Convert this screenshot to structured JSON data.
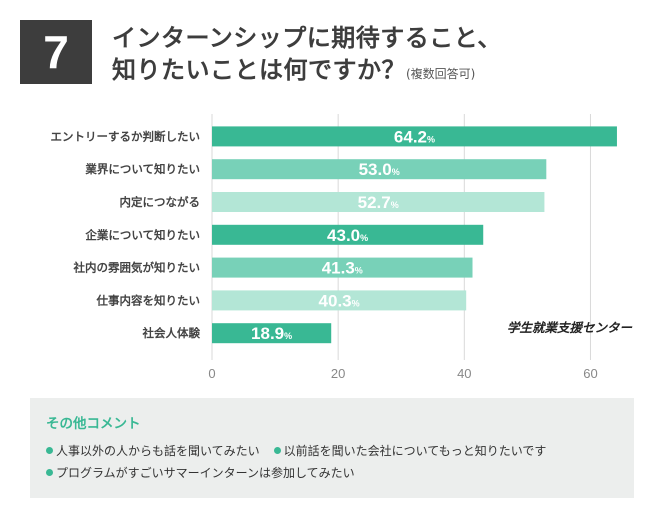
{
  "badge": "7",
  "title": {
    "line1": "インターンシップに期待すること、",
    "line2": "知りたいことは何ですか？",
    "note": "(複数回答可)"
  },
  "chart_data": {
    "type": "bar",
    "orientation": "horizontal",
    "categories": [
      "エントリーするか判断したい",
      "業界について知りたい",
      "内定につながる",
      "企業について知りたい",
      "社内の雰囲気が知りたい",
      "仕事内容を知りたい",
      "社会人体験"
    ],
    "values": [
      64.2,
      53.0,
      52.7,
      43.0,
      41.3,
      40.3,
      18.9
    ],
    "value_labels": [
      "64.2",
      "53.0",
      "52.7",
      "43.0",
      "41.3",
      "40.3",
      "18.9"
    ],
    "unit": "%",
    "bar_colors": [
      "#39b894",
      "#78d1b8",
      "#b3e6d6",
      "#39b894",
      "#78d1b8",
      "#b3e6d6",
      "#39b894"
    ],
    "xlim": [
      0,
      65
    ],
    "xticks": [
      0,
      20,
      40,
      60
    ],
    "grid": true,
    "annotation": "学生就業支援センター"
  },
  "comments": {
    "title": "その他コメント",
    "items": [
      "人事以外の人からも話を聞いてみたい",
      "以前話を聞いた会社についてもっと知りたいです",
      "プログラムがすごいサマーインターンは参加してみたい"
    ]
  }
}
